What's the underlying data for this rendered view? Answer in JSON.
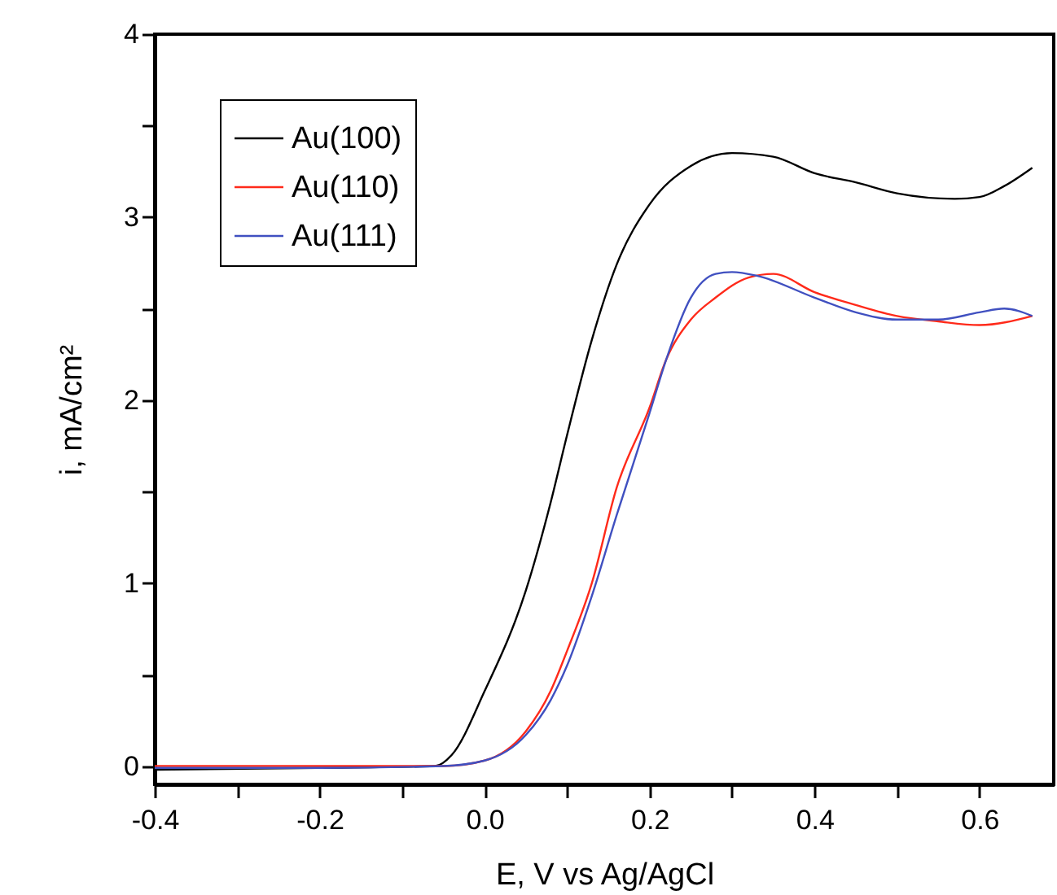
{
  "chart_data": {
    "type": "line",
    "xlabel": "E, V vs Ag/AgCl",
    "ylabel": "i, mA/cm²",
    "xlim": [
      -0.4,
      0.69
    ],
    "ylim": [
      -0.1,
      4
    ],
    "xticks": [
      -0.4,
      {
        "value": -0.3,
        "label": null
      },
      -0.2,
      {
        "value": -0.1,
        "label": null
      },
      {
        "value": 0,
        "label": "0.0"
      },
      {
        "value": 0.1,
        "label": null
      },
      0.2,
      {
        "value": 0.3,
        "label": null
      },
      0.4,
      {
        "value": 0.5,
        "label": null
      },
      0.6
    ],
    "yticks": [
      0,
      {
        "value": 0.5,
        "label": null
      },
      1,
      {
        "value": 1.5,
        "label": null
      },
      2,
      {
        "value": 2.5,
        "label": null
      },
      3,
      {
        "value": 3.5,
        "label": null
      },
      4
    ],
    "legend": "top left",
    "x": [
      -0.4,
      -0.2,
      -0.06,
      -0.04,
      0.0,
      0.05,
      0.08,
      0.1,
      0.13,
      0.16,
      0.2,
      0.25,
      0.3,
      0.35,
      0.4,
      0.45,
      0.5,
      0.57,
      0.6,
      0.63,
      0.664
    ],
    "series": [
      {
        "name": "Au(100)",
        "color": "#000000",
        "values": [
          -0.02,
          -0.01,
          0.0,
          0.06,
          0.41,
          0.96,
          1.44,
          1.81,
          2.33,
          2.74,
          3.07,
          3.28,
          3.35,
          3.33,
          3.24,
          3.19,
          3.13,
          3.1,
          3.11,
          3.17,
          3.27
        ]
      },
      {
        "name": "Au(110)",
        "color": "#ff2a1a",
        "x": [
          -0.4,
          -0.2,
          -0.05,
          0.0,
          0.05,
          0.08,
          0.1,
          0.13,
          0.16,
          0.2,
          0.22,
          0.25,
          0.28,
          0.32,
          0.35,
          0.4,
          0.45,
          0.5,
          0.55,
          0.6,
          0.664
        ],
        "values": [
          0.0,
          0.0,
          0.0,
          0.03,
          0.19,
          0.41,
          0.63,
          1.0,
          1.52,
          1.96,
          2.22,
          2.44,
          2.56,
          2.67,
          2.69,
          2.59,
          2.52,
          2.46,
          2.43,
          2.41,
          2.46
        ]
      },
      {
        "name": "Au(111)",
        "color": "#4050c0",
        "x": [
          -0.4,
          -0.2,
          -0.05,
          0.0,
          0.05,
          0.08,
          0.1,
          0.13,
          0.16,
          0.2,
          0.22,
          0.25,
          0.28,
          0.3,
          0.33,
          0.4,
          0.45,
          0.5,
          0.55,
          0.6,
          0.63,
          0.664
        ],
        "values": [
          -0.01,
          -0.01,
          0.0,
          0.03,
          0.17,
          0.36,
          0.55,
          0.93,
          1.37,
          1.93,
          2.22,
          2.56,
          2.69,
          2.7,
          2.68,
          2.56,
          2.48,
          2.44,
          2.44,
          2.48,
          2.5,
          2.46
        ]
      }
    ]
  }
}
